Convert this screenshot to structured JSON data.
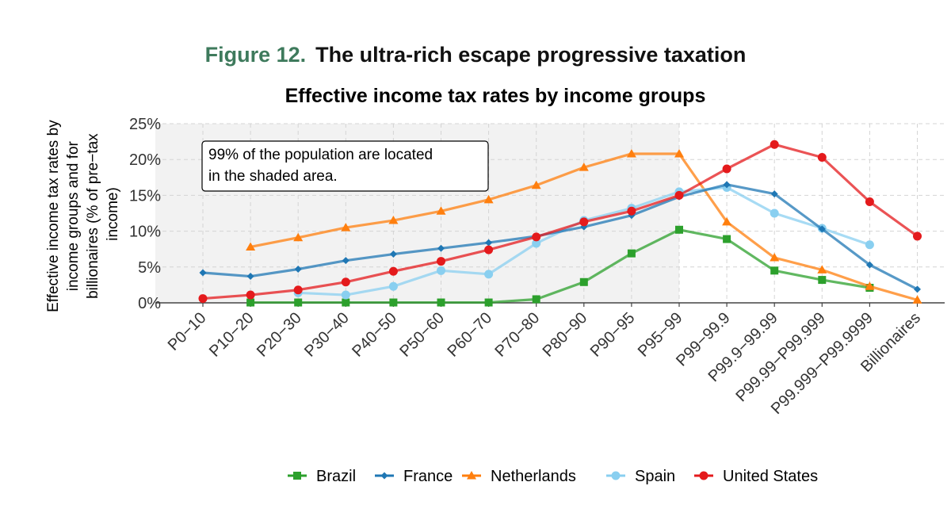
{
  "figure": {
    "label": "Figure 12.",
    "title": "The ultra-rich escape progressive taxation"
  },
  "chart_data": {
    "type": "line",
    "title": "Effective income tax rates by income groups",
    "ylabel_lines": [
      "Effective income tax rates by",
      "income groups  and for",
      "billionaires (% of pre−tax",
      "income)"
    ],
    "xlabel": "",
    "ylim": [
      0,
      25
    ],
    "yticks": [
      0,
      5,
      10,
      15,
      20,
      25
    ],
    "ytick_labels": [
      "0%",
      "5%",
      "10%",
      "15%",
      "20%",
      "25%"
    ],
    "categories": [
      "P0−10",
      "P10−20",
      "P20−30",
      "P30−40",
      "P40−50",
      "P50−60",
      "P60−70",
      "P70−80",
      "P80−90",
      "P90−95",
      "P95−99",
      "P99−99.9",
      "P99.9−99.99",
      "P99.99−P99.999",
      "P99.999−P99.9999",
      "Billionaires"
    ],
    "shaded_region": {
      "from_category": "P0−10",
      "to_category": "P95−99"
    },
    "annotation_lines": [
      "99% of the population are located",
      "in the shaded area."
    ],
    "grid": true,
    "legend_position": "bottom",
    "series": [
      {
        "name": "Brazil",
        "color": "#2ca02c",
        "marker": "square",
        "values": [
          null,
          0.05,
          0.05,
          0.05,
          0.05,
          0.05,
          0.05,
          0.5,
          2.9,
          6.9,
          10.2,
          8.9,
          4.5,
          3.2,
          2.1,
          null
        ]
      },
      {
        "name": "France",
        "color": "#1f77b4",
        "marker": "diamond",
        "values": [
          4.2,
          3.7,
          4.7,
          5.9,
          6.8,
          7.6,
          8.4,
          9.3,
          10.6,
          12.2,
          14.8,
          16.5,
          15.2,
          10.3,
          5.3,
          1.9
        ]
      },
      {
        "name": "Netherlands",
        "color": "#ff7f0e",
        "marker": "triangle",
        "values": [
          null,
          7.8,
          9.1,
          10.5,
          11.5,
          12.8,
          14.4,
          16.4,
          18.9,
          20.8,
          20.8,
          11.3,
          6.3,
          4.6,
          2.3,
          0.4
        ]
      },
      {
        "name": "Spain",
        "color": "#89cff0",
        "marker": "circle",
        "values": [
          null,
          null,
          1.4,
          1.1,
          2.3,
          4.5,
          4.0,
          8.3,
          11.5,
          13.2,
          15.5,
          16.1,
          12.5,
          10.4,
          8.1,
          null
        ]
      },
      {
        "name": "United States",
        "color": "#e41a1c",
        "marker": "circle",
        "values": [
          0.6,
          1.1,
          1.8,
          2.9,
          4.4,
          5.8,
          7.4,
          9.2,
          11.3,
          12.8,
          15.0,
          18.7,
          22.1,
          20.3,
          14.1,
          9.3
        ]
      }
    ]
  }
}
